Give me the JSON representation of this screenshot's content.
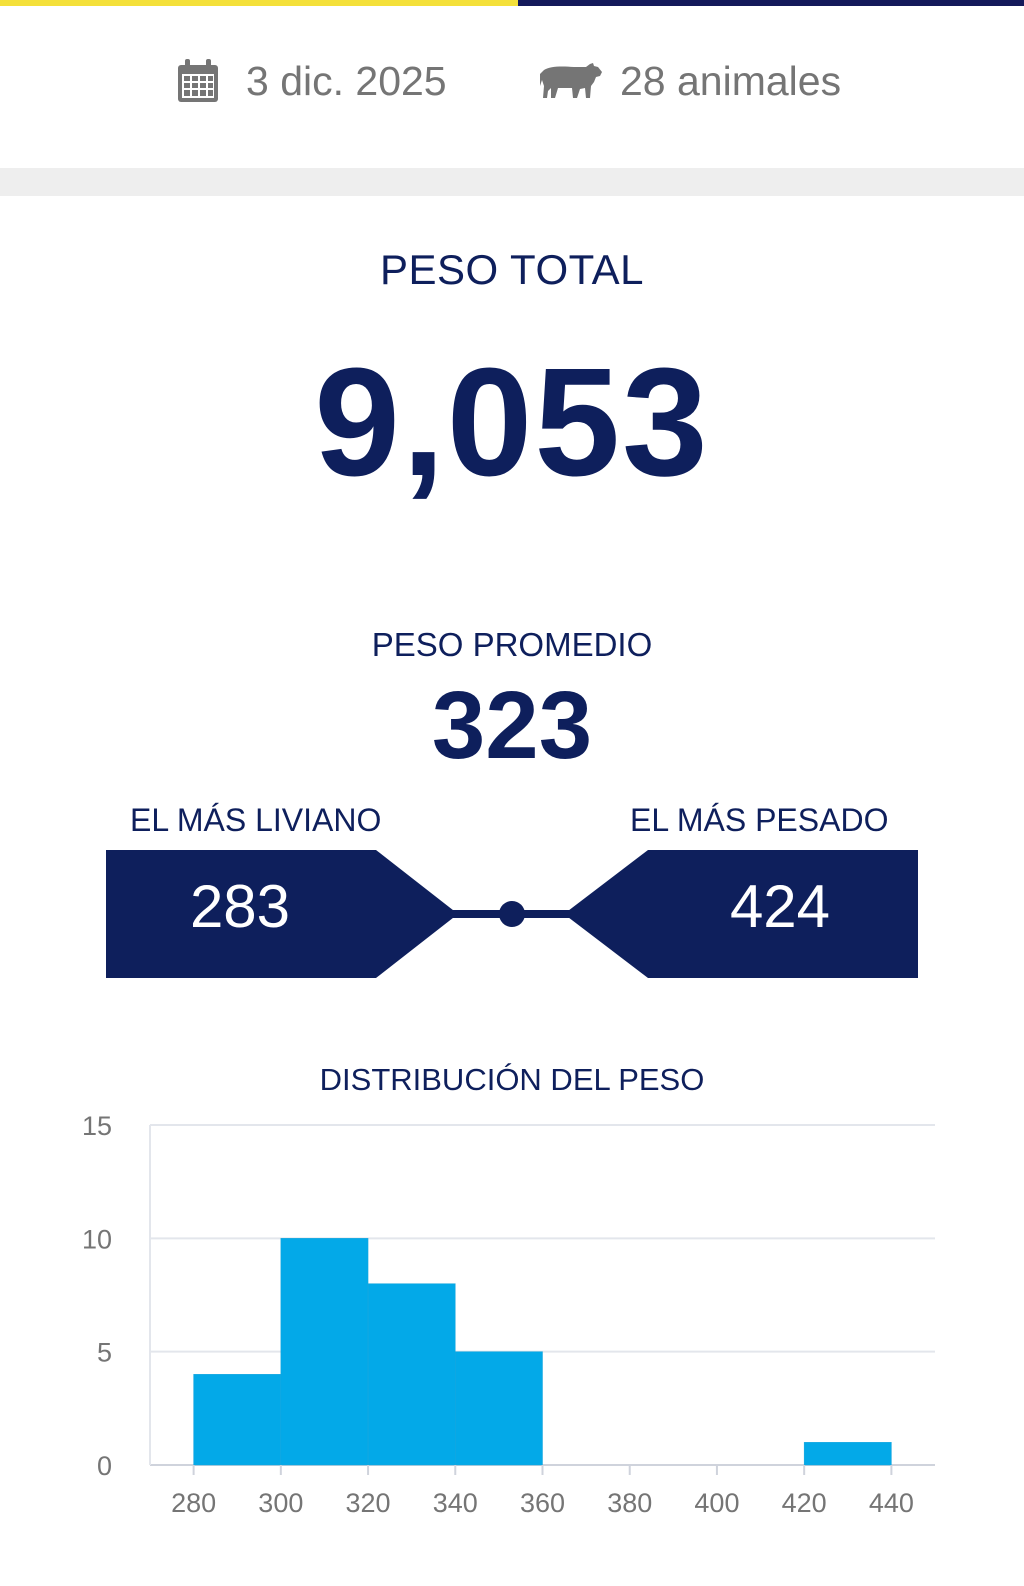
{
  "header": {
    "date": "3 dic. 2025",
    "date_icon": "calendar-icon",
    "animals": "28 animales",
    "animals_icon": "cow-icon",
    "accent_colors": [
      "#f4e03a",
      "#14195a"
    ]
  },
  "summary": {
    "total_label": "PESO TOTAL",
    "total_value": "9,053",
    "average_label": "PESO PROMEDIO",
    "average_value": "323",
    "lightest_label": "EL MÁS LIVIANO",
    "lightest_value": "283",
    "heaviest_label": "EL MÁS PESADO",
    "heaviest_value": "424"
  },
  "chart_title": "DISTRIBUCIÓN DEL PESO",
  "chart_data": {
    "type": "bar",
    "title": "DISTRIBUCIÓN DEL PESO",
    "xlabel": "",
    "ylabel": "",
    "x_ticks": [
      280,
      300,
      320,
      340,
      360,
      380,
      400,
      420,
      440
    ],
    "y_ticks": [
      0,
      5,
      10,
      15
    ],
    "ylim": [
      0,
      15
    ],
    "xlim": [
      270,
      450
    ],
    "bins": [
      {
        "from": 280,
        "to": 300,
        "count": 4
      },
      {
        "from": 300,
        "to": 320,
        "count": 10
      },
      {
        "from": 320,
        "to": 340,
        "count": 8
      },
      {
        "from": 340,
        "to": 360,
        "count": 5
      },
      {
        "from": 420,
        "to": 440,
        "count": 1
      }
    ],
    "bar_color": "#03a9e8",
    "grid": true
  }
}
